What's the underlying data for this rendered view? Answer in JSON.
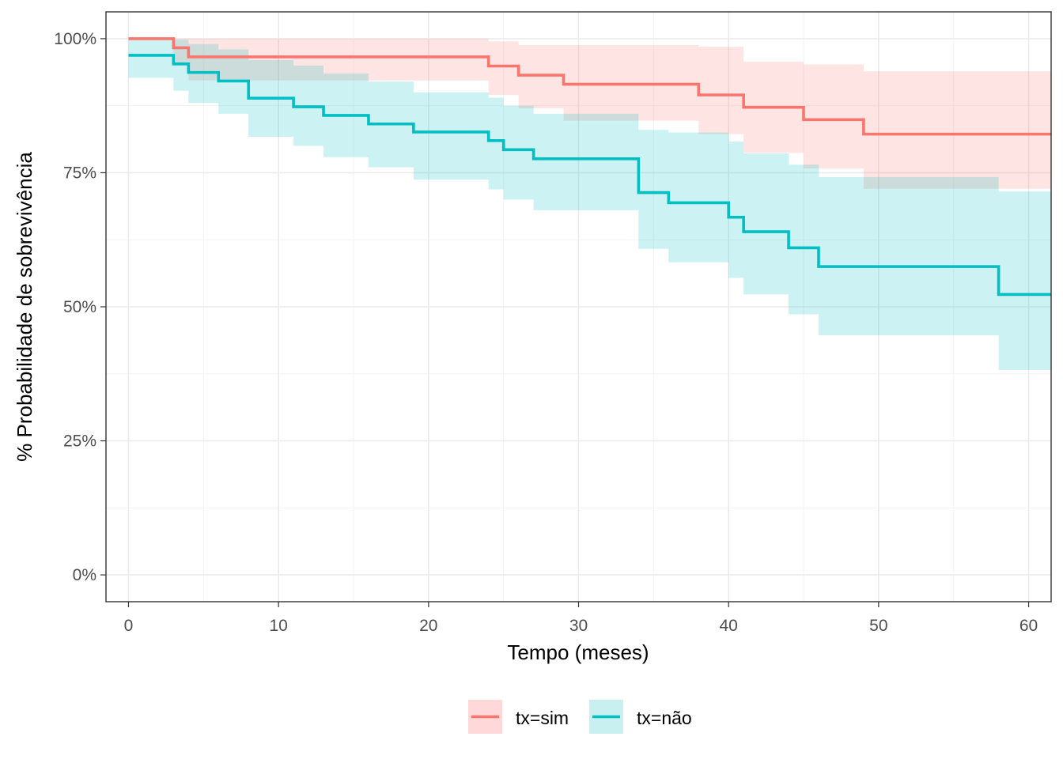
{
  "chart_data": {
    "type": "line",
    "step": true,
    "title": "",
    "xlabel": "Tempo (meses)",
    "ylabel": "% Probabilidade de sobrevivência",
    "xlim": [
      -1.5,
      61.5
    ],
    "ylim": [
      -0.05,
      1.05
    ],
    "x_ticks": [
      0,
      10,
      20,
      30,
      40,
      50,
      60
    ],
    "x_tick_labels": [
      "0",
      "10",
      "20",
      "30",
      "40",
      "50",
      "60"
    ],
    "y_ticks": [
      0,
      0.25,
      0.5,
      0.75,
      1.0
    ],
    "y_tick_labels": [
      "0%",
      "25%",
      "50%",
      "75%",
      "100%"
    ],
    "grid": true,
    "legend_position": "bottom",
    "series": [
      {
        "name": "tx=sim",
        "color": "#F8766D",
        "fill": "#FFD9DA",
        "points": [
          [
            0,
            1.0,
            1.0,
            1.0
          ],
          [
            3,
            0.983,
            1.0,
            0.95
          ],
          [
            4,
            0.966,
            1.0,
            0.922
          ],
          [
            24,
            0.949,
            0.995,
            0.895
          ],
          [
            26,
            0.932,
            0.988,
            0.87
          ],
          [
            29,
            0.915,
            0.988,
            0.847
          ],
          [
            38,
            0.895,
            0.985,
            0.822
          ],
          [
            41,
            0.872,
            0.957,
            0.787
          ],
          [
            45,
            0.849,
            0.952,
            0.758
          ],
          [
            49,
            0.822,
            0.939,
            0.72
          ],
          [
            61.5,
            0.822,
            0.939,
            0.72
          ]
        ]
      },
      {
        "name": "tx=não",
        "color": "#00BFC4",
        "fill": "#C8F0F1",
        "points": [
          [
            0,
            0.969,
            1.0,
            0.927
          ],
          [
            3,
            0.953,
            0.998,
            0.903
          ],
          [
            4,
            0.937,
            0.99,
            0.88
          ],
          [
            6,
            0.921,
            0.98,
            0.86
          ],
          [
            8,
            0.889,
            0.96,
            0.817
          ],
          [
            11,
            0.873,
            0.95,
            0.8
          ],
          [
            13,
            0.857,
            0.935,
            0.779
          ],
          [
            16,
            0.841,
            0.92,
            0.76
          ],
          [
            19,
            0.826,
            0.9,
            0.737
          ],
          [
            24,
            0.81,
            0.89,
            0.719
          ],
          [
            25,
            0.793,
            0.875,
            0.7
          ],
          [
            27,
            0.776,
            0.86,
            0.68
          ],
          [
            34,
            0.713,
            0.83,
            0.608
          ],
          [
            36,
            0.694,
            0.825,
            0.583
          ],
          [
            40,
            0.667,
            0.808,
            0.554
          ],
          [
            41,
            0.64,
            0.786,
            0.523
          ],
          [
            44,
            0.61,
            0.765,
            0.486
          ],
          [
            46,
            0.575,
            0.742,
            0.447
          ],
          [
            58,
            0.523,
            0.715,
            0.382
          ],
          [
            61.5,
            0.523,
            0.715,
            0.382
          ]
        ]
      }
    ]
  }
}
